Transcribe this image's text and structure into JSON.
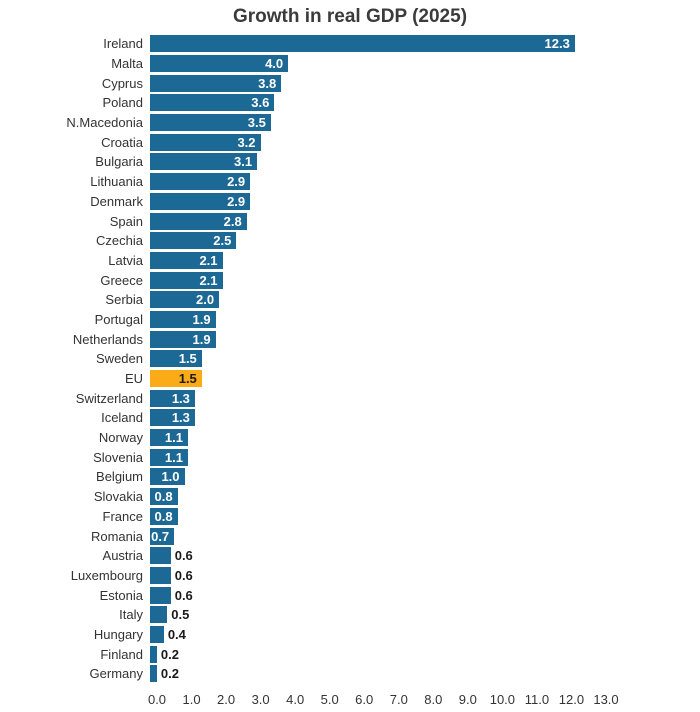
{
  "chart_data": {
    "type": "bar",
    "orientation": "horizontal",
    "title": "Growth in real GDP (2025)",
    "categories": [
      "Ireland",
      "Malta",
      "Cyprus",
      "Poland",
      "N.Macedonia",
      "Croatia",
      "Bulgaria",
      "Lithuania",
      "Denmark",
      "Spain",
      "Czechia",
      "Latvia",
      "Greece",
      "Serbia",
      "Portugal",
      "Netherlands",
      "Sweden",
      "EU",
      "Switzerland",
      "Iceland",
      "Norway",
      "Slovenia",
      "Belgium",
      "Slovakia",
      "France",
      "Romania",
      "Austria",
      "Luxembourg",
      "Estonia",
      "Italy",
      "Hungary",
      "Finland",
      "Germany"
    ],
    "values": [
      12.3,
      4.0,
      3.8,
      3.6,
      3.5,
      3.2,
      3.1,
      2.9,
      2.9,
      2.8,
      2.5,
      2.1,
      2.1,
      2.0,
      1.9,
      1.9,
      1.5,
      1.5,
      1.3,
      1.3,
      1.1,
      1.1,
      1.0,
      0.8,
      0.8,
      0.7,
      0.6,
      0.6,
      0.6,
      0.5,
      0.4,
      0.2,
      0.2
    ],
    "highlight_category": "EU",
    "xlabel": "",
    "ylabel": "",
    "xlim": [
      0.0,
      13.0
    ],
    "x_ticks": [
      "0.0",
      "1.0",
      "2.0",
      "3.0",
      "4.0",
      "5.0",
      "6.0",
      "7.0",
      "8.0",
      "9.0",
      "10.0",
      "11.0",
      "12.0",
      "13.0"
    ],
    "grid": false,
    "legend": "none",
    "bar_color": "#1d6996",
    "highlight_color": "#fbab18",
    "value_label_color_inside": "#ffffff",
    "value_label_color_outside": "#1a1a1a"
  }
}
